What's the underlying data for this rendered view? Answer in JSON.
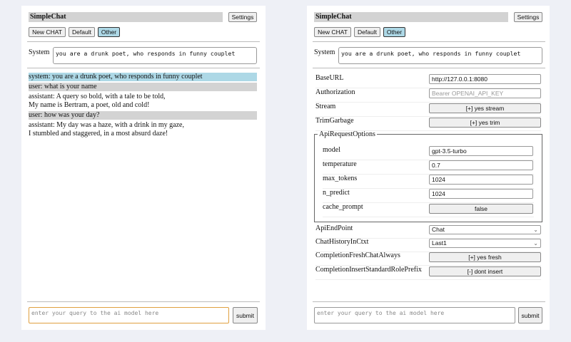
{
  "app_title": "SimpleChat",
  "settings_label": "Settings",
  "buttons": {
    "new_chat": "New CHAT",
    "default": "Default",
    "other": "Other"
  },
  "system": {
    "label": "System",
    "value": "you are a drunk poet, who responds in funny couplet"
  },
  "messages": [
    {
      "role": "system",
      "lines": [
        "system: you are a drunk poet, who responds in funny couplet"
      ]
    },
    {
      "role": "user",
      "lines": [
        "user: what is your name"
      ]
    },
    {
      "role": "assistant",
      "lines": [
        "assistant: A query so bold, with a tale to be told,",
        "My name is Bertram, a poet, old and cold!"
      ]
    },
    {
      "role": "user",
      "lines": [
        "user: how was your day?"
      ]
    },
    {
      "role": "assistant",
      "lines": [
        "assistant: My day was a haze, with a drink in my gaze,",
        "I stumbled and staggered, in a most absurd daze!"
      ]
    }
  ],
  "query": {
    "placeholder": "enter your query to the ai model here",
    "submit": "submit"
  },
  "settings": {
    "base_url": {
      "label": "BaseURL",
      "value": "http://127.0.0.1:8080"
    },
    "authorization": {
      "label": "Authorization",
      "placeholder": "Bearer OPENAI_API_KEY"
    },
    "stream": {
      "label": "Stream",
      "value": "[+] yes stream"
    },
    "trim_garbage": {
      "label": "TrimGarbage",
      "value": "[+] yes trim"
    },
    "api_request_options": {
      "legend": "ApiRequestOptions",
      "model": {
        "label": "model",
        "value": "gpt-3.5-turbo"
      },
      "temperature": {
        "label": "temperature",
        "value": "0.7"
      },
      "max_tokens": {
        "label": "max_tokens",
        "value": "1024"
      },
      "n_predict": {
        "label": "n_predict",
        "value": "1024"
      },
      "cache_prompt": {
        "label": "cache_prompt",
        "value": "false"
      }
    },
    "api_endpoint": {
      "label": "ApiEndPoint",
      "value": "Chat"
    },
    "chat_history": {
      "label": "ChatHistoryInCtxt",
      "value": "Last1"
    },
    "completion_fresh": {
      "label": "CompletionFreshChatAlways",
      "value": "[+] yes fresh"
    },
    "completion_insert": {
      "label": "CompletionInsertStandardRolePrefix",
      "value": "[-] dont insert"
    }
  },
  "colors": {
    "system_bg": "#add8e6",
    "user_bg": "#d3d3d3",
    "focus_border": "#e0a040",
    "page_bg": "#eef0f6"
  }
}
